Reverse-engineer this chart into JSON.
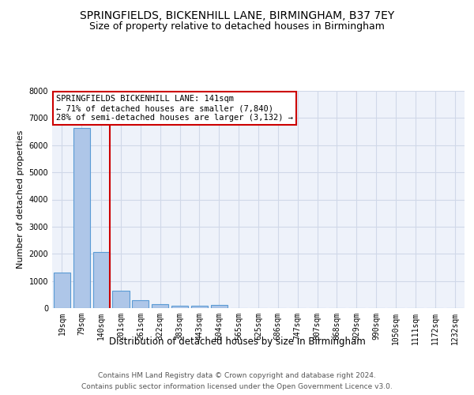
{
  "title1": "SPRINGFIELDS, BICKENHILL LANE, BIRMINGHAM, B37 7EY",
  "title2": "Size of property relative to detached houses in Birmingham",
  "xlabel": "Distribution of detached houses by size in Birmingham",
  "ylabel": "Number of detached properties",
  "categories": [
    "19sqm",
    "79sqm",
    "140sqm",
    "201sqm",
    "261sqm",
    "322sqm",
    "383sqm",
    "443sqm",
    "504sqm",
    "565sqm",
    "625sqm",
    "686sqm",
    "747sqm",
    "807sqm",
    "868sqm",
    "929sqm",
    "990sqm",
    "1050sqm",
    "1111sqm",
    "1172sqm",
    "1232sqm"
  ],
  "values": [
    1310,
    6630,
    2080,
    650,
    295,
    145,
    95,
    75,
    110,
    0,
    0,
    0,
    0,
    0,
    0,
    0,
    0,
    0,
    0,
    0,
    0
  ],
  "bar_color": "#aec6e8",
  "bar_edge_color": "#5b9bd5",
  "subject_line_color": "#cc0000",
  "annotation_text": "SPRINGFIELDS BICKENHILL LANE: 141sqm\n← 71% of detached houses are smaller (7,840)\n28% of semi-detached houses are larger (3,132) →",
  "annotation_box_color": "white",
  "annotation_box_edge_color": "#cc0000",
  "ylim": [
    0,
    8000
  ],
  "yticks": [
    0,
    1000,
    2000,
    3000,
    4000,
    5000,
    6000,
    7000,
    8000
  ],
  "grid_color": "#d0d8e8",
  "bg_color": "#eef2fa",
  "footer1": "Contains HM Land Registry data © Crown copyright and database right 2024.",
  "footer2": "Contains public sector information licensed under the Open Government Licence v3.0.",
  "title1_fontsize": 10,
  "title2_fontsize": 9,
  "xlabel_fontsize": 8.5,
  "ylabel_fontsize": 8,
  "tick_fontsize": 7,
  "annotation_fontsize": 7.5,
  "footer_fontsize": 6.5
}
